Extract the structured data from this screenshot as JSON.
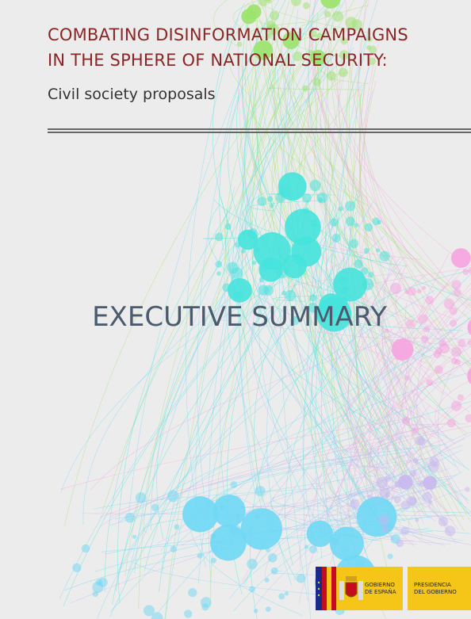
{
  "header": {
    "title_lines": [
      "COMBATING DISINFORMATION CAMPAIGNS",
      "IN THE SPHERE OF NATIONAL SECURITY:"
    ],
    "subtitle": "Civil society proposals"
  },
  "heading": "EXECUTIVE SUMMARY",
  "footer": {
    "logo_left_lines": [
      "GOBIERNO",
      "DE ESPAÑA"
    ],
    "logo_right_lines": [
      "PRESIDENCIA",
      "DEL GOBIERNO"
    ]
  }
}
